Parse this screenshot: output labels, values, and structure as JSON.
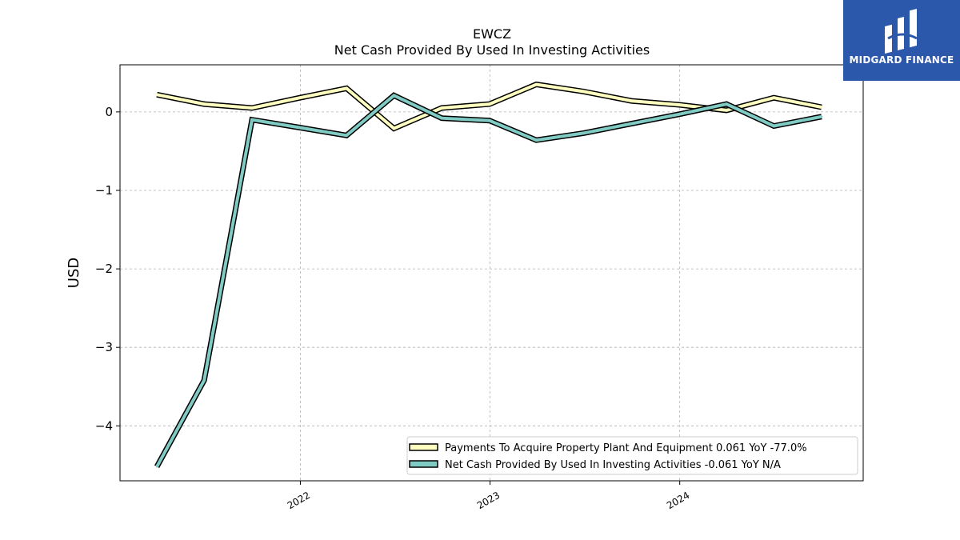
{
  "chart_data": {
    "type": "line",
    "title": "EWCZ",
    "subtitle": "Net Cash Provided By Used In Investing Activities",
    "ylabel": "USD",
    "xlabel": "",
    "ylim": [
      -4.7,
      0.6
    ],
    "xlim": [
      "2021-01-19",
      "2024-12-19"
    ],
    "yticks": [
      0,
      -1,
      -2,
      -3,
      -4
    ],
    "ytick_labels": [
      "0",
      "−1",
      "−2",
      "−3",
      "−4"
    ],
    "xticks": [
      "2022-01-01",
      "2023-01-01",
      "2024-01-01"
    ],
    "xtick_labels": [
      "2022",
      "2023",
      "2024"
    ],
    "grid": true,
    "legend_position": "lower-right",
    "series": [
      {
        "name": "Payments To Acquire Property Plant And Equipment  0.061 YoY -77.0%",
        "color": "#ffffbf",
        "x": [
          "2021-03-31",
          "2021-06-30",
          "2021-09-30",
          "2021-12-31",
          "2022-03-31",
          "2022-06-30",
          "2022-09-30",
          "2022-12-31",
          "2023-03-31",
          "2023-06-30",
          "2023-09-30",
          "2023-12-31",
          "2024-03-31",
          "2024-06-30",
          "2024-09-30"
        ],
        "values": [
          0.22,
          0.1,
          0.05,
          0.18,
          0.3,
          -0.21,
          0.05,
          0.1,
          0.35,
          0.26,
          0.14,
          0.09,
          0.02,
          0.18,
          0.06
        ]
      },
      {
        "name": "Net Cash Provided By Used In Investing Activities  -0.061 YoY N/A",
        "color": "#80cbc4",
        "x": [
          "2021-03-31",
          "2021-06-30",
          "2021-09-30",
          "2021-12-31",
          "2022-03-31",
          "2022-06-30",
          "2022-09-30",
          "2022-12-31",
          "2023-03-31",
          "2023-06-30",
          "2023-09-30",
          "2023-12-31",
          "2024-03-31",
          "2024-06-30",
          "2024-09-30"
        ],
        "values": [
          -4.52,
          -3.42,
          -0.1,
          -0.2,
          -0.3,
          0.21,
          -0.08,
          -0.11,
          -0.36,
          -0.27,
          -0.15,
          -0.03,
          0.1,
          -0.18,
          -0.06
        ]
      }
    ]
  },
  "logo": {
    "text": "MIDGARD FINANCE",
    "background": "#2b58ab"
  }
}
